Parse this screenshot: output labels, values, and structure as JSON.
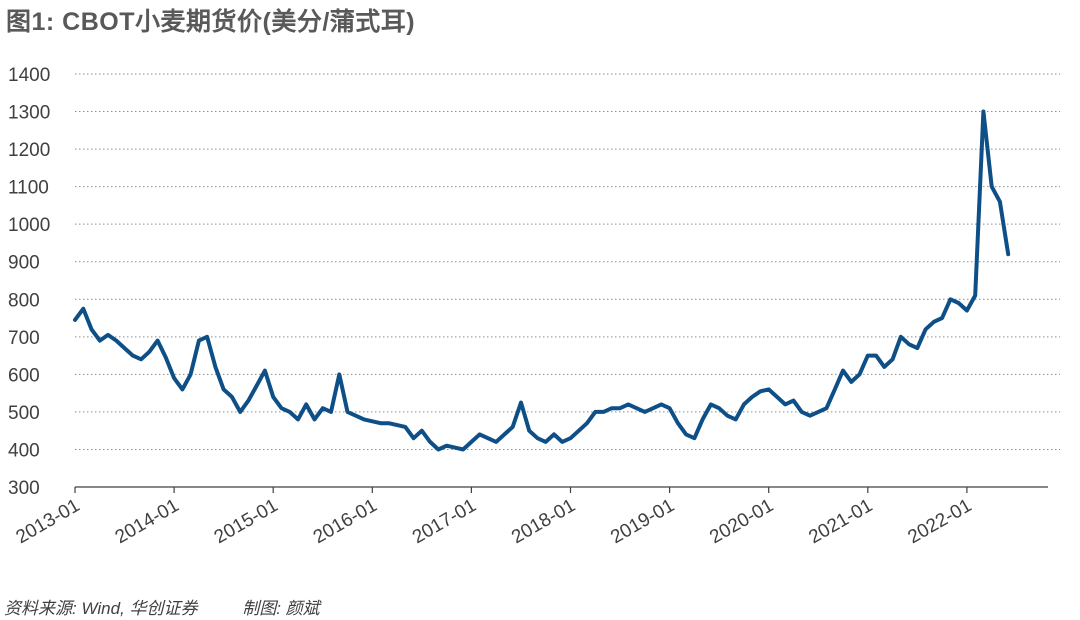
{
  "title": "图1: CBOT小麦期货价(美分/蒲式耳)",
  "footer": {
    "source": "资料来源: Wind, 华创证券",
    "author": "制图: 颜斌"
  },
  "colors": {
    "line": "#0d4f86",
    "grid": "#8c8c8c",
    "axis": "#404040",
    "text": "#404040"
  },
  "chart_data": {
    "type": "line",
    "title": "图1: CBOT小麦期货价(美分/蒲式耳)",
    "xlabel": "",
    "ylabel": "",
    "ylim": [
      300,
      1400
    ],
    "yticks": [
      300,
      400,
      500,
      600,
      700,
      800,
      900,
      1000,
      1100,
      1200,
      1300,
      1400
    ],
    "xticks": [
      "2013-01",
      "2014-01",
      "2015-01",
      "2016-01",
      "2017-01",
      "2018-01",
      "2019-01",
      "2020-01",
      "2021-01",
      "2022-01"
    ],
    "grid": "horizontal dashed",
    "legend": "none",
    "series": [
      {
        "x": [
          "2013-01",
          "2013-02",
          "2013-03",
          "2013-04",
          "2013-05",
          "2013-06",
          "2013-07",
          "2013-08",
          "2013-09",
          "2013-10",
          "2013-11",
          "2013-12",
          "2014-01",
          "2014-02",
          "2014-03",
          "2014-04",
          "2014-05",
          "2014-06",
          "2014-07",
          "2014-08",
          "2014-09",
          "2014-10",
          "2014-11",
          "2014-12",
          "2015-01",
          "2015-02",
          "2015-03",
          "2015-04",
          "2015-05",
          "2015-06",
          "2015-07",
          "2015-08",
          "2015-09",
          "2015-10",
          "2015-11",
          "2015-12",
          "2016-01",
          "2016-02",
          "2016-03",
          "2016-04",
          "2016-05",
          "2016-06",
          "2016-07",
          "2016-08",
          "2016-09",
          "2016-10",
          "2016-11",
          "2016-12",
          "2017-01",
          "2017-02",
          "2017-03",
          "2017-04",
          "2017-05",
          "2017-06",
          "2017-07",
          "2017-08",
          "2017-09",
          "2017-10",
          "2017-11",
          "2017-12",
          "2018-01",
          "2018-02",
          "2018-03",
          "2018-04",
          "2018-05",
          "2018-06",
          "2018-07",
          "2018-08",
          "2018-09",
          "2018-10",
          "2018-11",
          "2018-12",
          "2019-01",
          "2019-02",
          "2019-03",
          "2019-04",
          "2019-05",
          "2019-06",
          "2019-07",
          "2019-08",
          "2019-09",
          "2019-10",
          "2019-11",
          "2019-12",
          "2020-01",
          "2020-02",
          "2020-03",
          "2020-04",
          "2020-05",
          "2020-06",
          "2020-07",
          "2020-08",
          "2020-09",
          "2020-10",
          "2020-11",
          "2020-12",
          "2021-01",
          "2021-02",
          "2021-03",
          "2021-04",
          "2021-05",
          "2021-06",
          "2021-07",
          "2021-08",
          "2021-09",
          "2021-10",
          "2021-11",
          "2021-12",
          "2022-01",
          "2022-02",
          "2022-03",
          "2022-04",
          "2022-05",
          "2022-06"
        ],
        "values": [
          745,
          775,
          720,
          690,
          705,
          690,
          670,
          650,
          640,
          660,
          690,
          645,
          590,
          560,
          600,
          690,
          700,
          620,
          560,
          540,
          500,
          530,
          570,
          610,
          540,
          510,
          500,
          480,
          520,
          480,
          510,
          500,
          600,
          500,
          490,
          480,
          475,
          470,
          470,
          465,
          460,
          430,
          450,
          420,
          400,
          410,
          405,
          400,
          420,
          440,
          430,
          420,
          440,
          460,
          525,
          450,
          430,
          420,
          440,
          420,
          430,
          450,
          470,
          500,
          500,
          510,
          510,
          520,
          510,
          500,
          510,
          520,
          510,
          470,
          440,
          430,
          480,
          520,
          510,
          490,
          480,
          520,
          540,
          555,
          560,
          540,
          520,
          530,
          500,
          490,
          500,
          510,
          560,
          610,
          580,
          600,
          650,
          650,
          620,
          640,
          700,
          680,
          670,
          720,
          740,
          750,
          800,
          790,
          770,
          810,
          1300,
          1100,
          1060,
          920
        ]
      }
    ]
  }
}
